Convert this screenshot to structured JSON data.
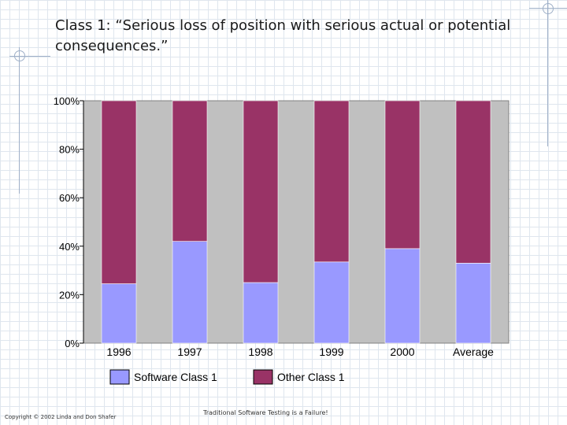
{
  "slide": {
    "title": "Class 1: “Serious loss of position with serious actual or potential consequences.”",
    "footer_left": "Copyright © 2002 Linda and Don Shafer",
    "footer_center": "Traditional Software Testing is a Failure!"
  },
  "chart_data": {
    "type": "bar",
    "stacked": true,
    "percent": true,
    "categories": [
      "1996",
      "1997",
      "1998",
      "1999",
      "2000",
      "Average"
    ],
    "series": [
      {
        "name": "Software Class 1",
        "color": "#9999ff",
        "values": [
          24.5,
          42,
          25,
          33.5,
          39,
          33
        ]
      },
      {
        "name": "Other Class 1",
        "color": "#993366",
        "values": [
          75.5,
          58,
          75,
          66.5,
          61,
          67
        ]
      }
    ],
    "y_ticks": [
      "0%",
      "20%",
      "40%",
      "60%",
      "80%",
      "100%"
    ],
    "ylim": [
      0,
      100
    ],
    "plot_background": "#c0c0c0",
    "grid": false,
    "legend_position": "bottom"
  }
}
